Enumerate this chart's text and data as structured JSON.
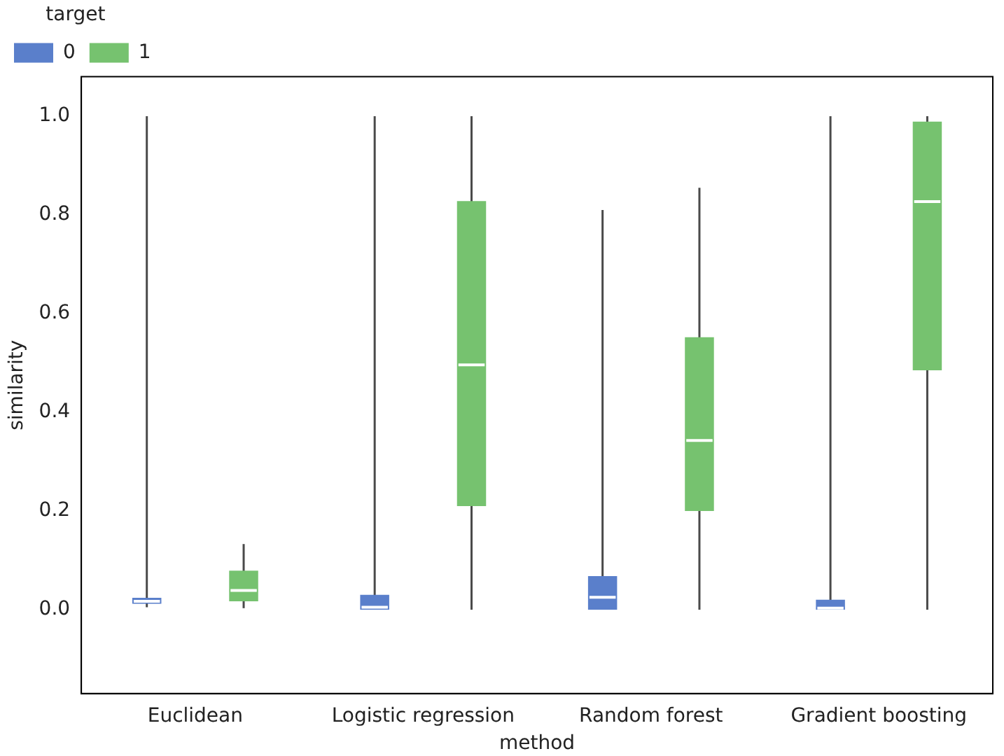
{
  "chart_data": {
    "type": "box",
    "xlabel": "method",
    "ylabel": "similarity",
    "legend_title": "target",
    "legend": "top left",
    "grid": false,
    "categories": [
      "Euclidean",
      "Logistic regression",
      "Random forest",
      "Gradient boosting"
    ],
    "ylim": [
      -0.17,
      1.08
    ],
    "yticks": [
      {
        "value": 0,
        "label": "0.0"
      },
      0.2,
      0.4,
      0.6,
      0.8,
      {
        "value": 1,
        "label": "1.0"
      }
    ],
    "series": [
      {
        "name": "0",
        "color": "#5a7fcb",
        "boxes": [
          {
            "low": 0.005,
            "q1": 0.012,
            "median": 0.017,
            "q3": 0.024,
            "high": 1.0
          },
          {
            "low": 0.0,
            "q1": 0.0,
            "median": 0.005,
            "q3": 0.03,
            "high": 1.0
          },
          {
            "low": 0.0,
            "q1": 0.0,
            "median": 0.025,
            "q3": 0.068,
            "high": 0.81
          },
          {
            "low": 0.0,
            "q1": 0.0,
            "median": 0.003,
            "q3": 0.02,
            "high": 1.0
          }
        ]
      },
      {
        "name": "1",
        "color": "#76c26f",
        "boxes": [
          {
            "low": 0.003,
            "q1": 0.017,
            "median": 0.039,
            "q3": 0.079,
            "high": 0.133
          },
          {
            "low": 0.0,
            "q1": 0.21,
            "median": 0.496,
            "q3": 0.828,
            "high": 1.0
          },
          {
            "low": 0.0,
            "q1": 0.2,
            "median": 0.343,
            "q3": 0.552,
            "high": 0.855
          },
          {
            "low": 0.0,
            "q1": 0.485,
            "median": 0.827,
            "q3": 0.989,
            "high": 1.0
          }
        ]
      }
    ]
  }
}
